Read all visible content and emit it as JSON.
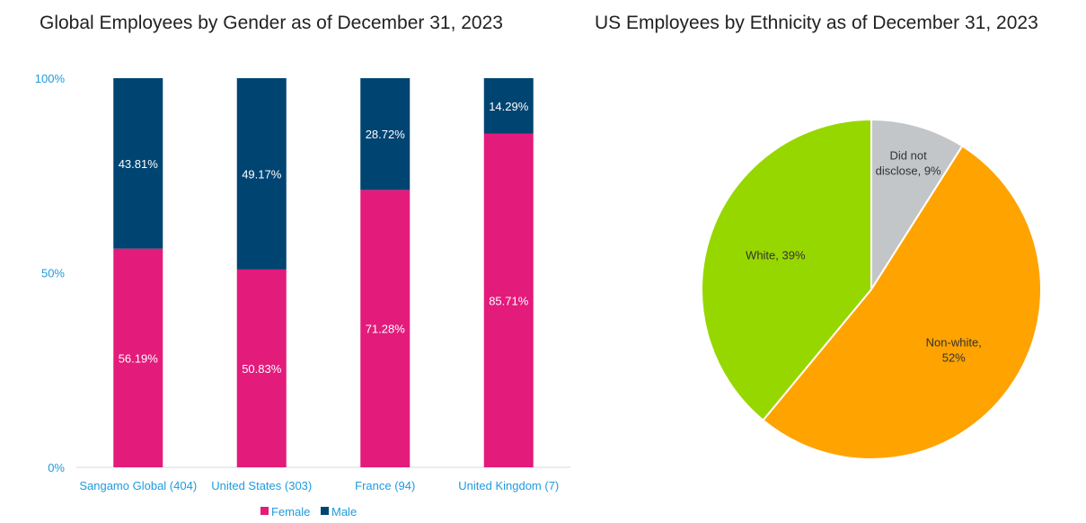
{
  "chart_data": [
    {
      "type": "bar",
      "stacked": true,
      "title": "Global Employees by Gender as of December 31, 2023",
      "categories": [
        "Sangamo Global (404)",
        "United States (303)",
        "France (94)",
        "United Kingdom (7)"
      ],
      "series": [
        {
          "name": "Female",
          "values": [
            56.19,
            50.83,
            71.28,
            85.71
          ],
          "labels": [
            "56.19%",
            "50.83%",
            "71.28%",
            "85.71%"
          ],
          "color": "#e31b7b"
        },
        {
          "name": "Male",
          "values": [
            43.81,
            49.17,
            28.72,
            14.29
          ],
          "labels": [
            "43.81%",
            "49.17%",
            "28.72%",
            "14.29%"
          ],
          "color": "#004472"
        }
      ],
      "ylim": [
        0,
        100
      ],
      "yticks": [
        "0%",
        "50%",
        "100%"
      ],
      "legend": "bottom",
      "grid": false,
      "axis_label_color": "#1f9bde"
    },
    {
      "type": "pie",
      "title": "US Employees by Ethnicity as of December 31, 2023",
      "slices": [
        {
          "name": "Did not disclose",
          "value": 9,
          "label": [
            "Did not",
            "disclose, 9%"
          ],
          "color": "#c3c6c8"
        },
        {
          "name": "Non-white",
          "value": 52,
          "label": [
            "Non-white,",
            "52%"
          ],
          "color": "#ffa300"
        },
        {
          "name": "White",
          "value": 39,
          "label": [
            "White, 39%"
          ],
          "color": "#97d700"
        }
      ]
    }
  ]
}
